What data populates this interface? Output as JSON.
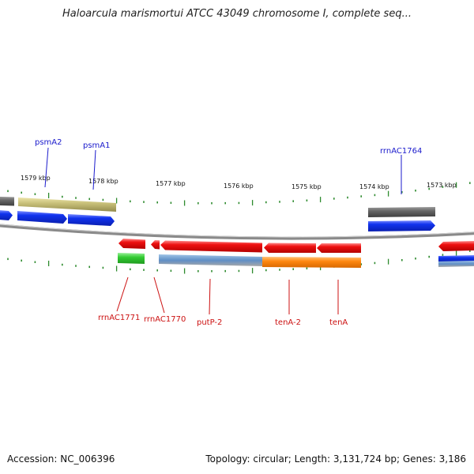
{
  "title": "Haloarcula marismortui ATCC 43049 chromosome I, complete seq...",
  "accession_line": "Accession: NC_006396",
  "summary_line": "Topology: circular; Length: 3,131,724 bp; Genes: 3,186",
  "scale_labels": [
    "1579 kbp",
    "1578 kbp",
    "1577 kbp",
    "1576 kbp",
    "1575 kbp",
    "1574 kbp",
    "1573 kbp"
  ],
  "forward_strand_genes": [
    "psmA2",
    "psmA1",
    "rrnAC1764"
  ],
  "reverse_strand_genes": [
    "rrnAC1771",
    "rrnAC1770",
    "putP-2",
    "tenA-2",
    "tenA"
  ],
  "colors": {
    "forward_label": "#1a1acc",
    "reverse_label": "#cc1111",
    "gene_red": "#ee1111",
    "gene_blue": "#1133ee",
    "gene_orange": "#ff8811",
    "gene_green": "#33cc33",
    "gene_khaki": "#c9c17a",
    "gene_gray": "#666666",
    "backbone": "#888888",
    "tick_green": "#2e8b2e"
  }
}
